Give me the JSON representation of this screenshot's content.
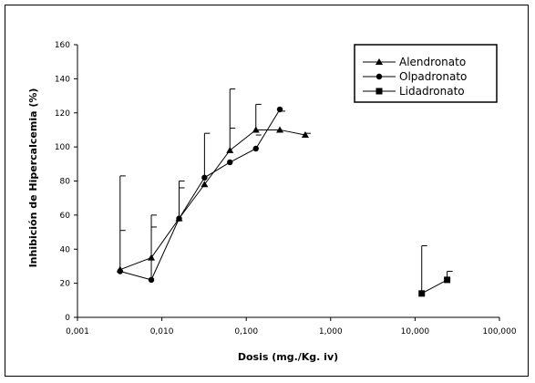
{
  "chart_data": {
    "type": "line",
    "title": "",
    "xlabel": "Dosis (mg./Kg. iv)",
    "ylabel": "Inhibición de Hipercalcemia (%)",
    "xscale": "log",
    "xlim": [
      0.001,
      100
    ],
    "ylim": [
      0,
      160
    ],
    "x_ticks": [
      0.001,
      0.01,
      0.1,
      1,
      10,
      100
    ],
    "x_tick_labels": [
      "0,001",
      "0,010",
      "0,100",
      "1,000",
      "10,000",
      "100,000"
    ],
    "y_ticks": [
      0,
      20,
      40,
      60,
      80,
      100,
      120,
      140,
      160
    ],
    "y_tick_labels": [
      "0",
      "20",
      "40",
      "60",
      "80",
      "100",
      "120",
      "140",
      "160"
    ],
    "grid": false,
    "legend_position": "top-right",
    "series": [
      {
        "name": "Alendronato",
        "marker": "triangle",
        "points": [
          {
            "x": 0.0032,
            "y": 28
          },
          {
            "x": 0.0075,
            "y": 35
          },
          {
            "x": 0.016,
            "y": 58
          },
          {
            "x": 0.032,
            "y": 78
          },
          {
            "x": 0.064,
            "y": 98,
            "err": 36
          },
          {
            "x": 0.13,
            "y": 110,
            "err": 15
          },
          {
            "x": 0.25,
            "y": 110
          },
          {
            "x": 0.5,
            "y": 107,
            "err": 1
          }
        ]
      },
      {
        "name": "Olpadronato",
        "marker": "circle",
        "points": [
          {
            "x": 0.0032,
            "y": 27,
            "err": 56
          },
          {
            "x": 0.0075,
            "y": 22,
            "err": 38
          },
          {
            "x": 0.016,
            "y": 58,
            "err": 22
          },
          {
            "x": 0.032,
            "y": 82,
            "err": 26
          },
          {
            "x": 0.064,
            "y": 91
          },
          {
            "x": 0.13,
            "y": 99
          },
          {
            "x": 0.25,
            "y": 122
          }
        ]
      },
      {
        "name": "Lidadronato",
        "marker": "square",
        "points": [
          {
            "x": 12,
            "y": 14,
            "err": 28
          },
          {
            "x": 24,
            "y": 22,
            "err": 5
          }
        ]
      }
    ],
    "extra_error_caps": [
      {
        "x": 0.0032,
        "y": 51
      },
      {
        "x": 0.0075,
        "y": 53
      },
      {
        "x": 0.016,
        "y": 76
      },
      {
        "x": 0.064,
        "y": 111
      },
      {
        "x": 0.13,
        "y": 107
      },
      {
        "x": 0.25,
        "y": 121
      }
    ]
  }
}
